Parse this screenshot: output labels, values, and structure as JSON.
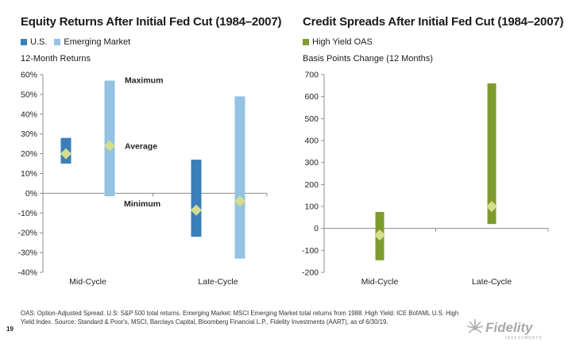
{
  "page": {
    "footnote": "OAS: Option-Adjusted Spread. U.S: S&P 500 total returns. Emerging Market: MSCI Emerging Market total returns from 1988. High Yield: ICE BofAML U.S. High Yield Index. Source: Standard & Poor's, MSCI, Barclays Capital, Bloomberg Financial L.P., Fidelity Investments (AART), as of 6/30/19.",
    "page_number": "19",
    "logo_text": "Fidelity",
    "logo_subtext": "INVESTMENTS"
  },
  "chart_data": [
    {
      "type": "bar",
      "title": "Equity Returns After Initial Fed Cut (1984–2007)",
      "ylabel": "12-Month Returns",
      "ylim": [
        -40,
        60
      ],
      "yticks": [
        -40,
        -30,
        -20,
        -10,
        0,
        10,
        20,
        30,
        40,
        50,
        60
      ],
      "ytick_labels": [
        "-40%",
        "-30%",
        "-20%",
        "-10%",
        "0%",
        "10%",
        "20%",
        "30%",
        "40%",
        "50%",
        "60%"
      ],
      "categories": [
        "Mid-Cycle",
        "Late-Cycle"
      ],
      "annotations": [
        "Maximum",
        "Average",
        "Minimum"
      ],
      "series": [
        {
          "name": "U.S.",
          "color": "#3a7fb9",
          "min": [
            15,
            -22
          ],
          "max": [
            28,
            17
          ],
          "average": [
            20,
            -8.5
          ]
        },
        {
          "name": "Emerging Market",
          "color": "#93c2e2",
          "min": [
            -1.5,
            -33
          ],
          "max": [
            57,
            49
          ],
          "average": [
            24,
            -4
          ]
        }
      ],
      "marker_color": "#d5de8c",
      "grid": false
    },
    {
      "type": "bar",
      "title": "Credit Spreads After Initial Fed Cut (1984–2007)",
      "ylabel": "Basis Points Change (12 Months)",
      "ylim": [
        -200,
        700
      ],
      "yticks": [
        -200,
        -100,
        0,
        100,
        200,
        300,
        400,
        500,
        600,
        700
      ],
      "ytick_labels": [
        "-200",
        "-100",
        "0",
        "100",
        "200",
        "300",
        "400",
        "500",
        "600",
        "700"
      ],
      "categories": [
        "Mid-Cycle",
        "Late-Cycle"
      ],
      "series": [
        {
          "name": "High Yield OAS",
          "color": "#7e9b2e",
          "min": [
            -145,
            20
          ],
          "max": [
            75,
            660
          ],
          "average": [
            -30,
            100
          ]
        }
      ],
      "marker_color": "#d5de8c",
      "grid": false
    }
  ]
}
